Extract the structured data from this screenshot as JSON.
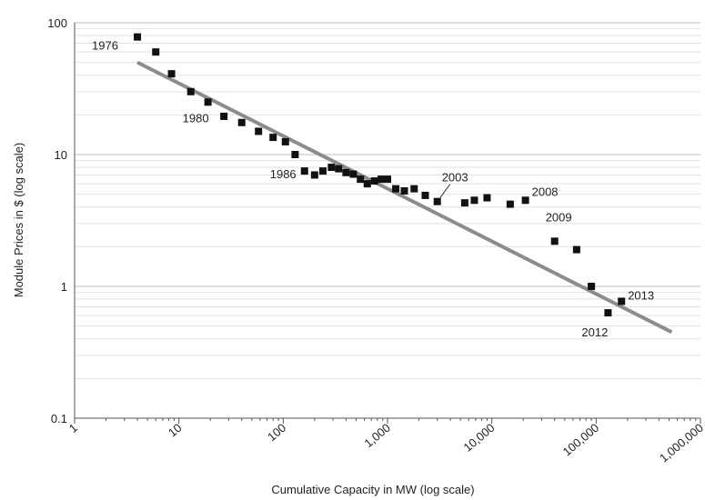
{
  "chart_data": {
    "type": "scatter",
    "xlabel": "Cumulative Capacity in MW (log scale)",
    "ylabel": "Module Prices in $ (log scale)",
    "xscale": "log",
    "yscale": "log",
    "xlim": [
      1,
      1000000
    ],
    "ylim": [
      0.1,
      100
    ],
    "x_ticks": [
      {
        "value": 1,
        "label": "1"
      },
      {
        "value": 10,
        "label": "10"
      },
      {
        "value": 100,
        "label": "100"
      },
      {
        "value": 1000,
        "label": "1,000"
      },
      {
        "value": 10000,
        "label": "10,000"
      },
      {
        "value": 100000,
        "label": "100,000"
      },
      {
        "value": 1000000,
        "label": "1,000,000"
      }
    ],
    "y_ticks": [
      {
        "value": 0.1,
        "label": "0.1"
      },
      {
        "value": 1,
        "label": "1"
      },
      {
        "value": 10,
        "label": "10"
      },
      {
        "value": 100,
        "label": "100"
      }
    ],
    "grid": "horizontal major and minor",
    "colors": {
      "points": "#111111",
      "trendline": "#8c8c8c",
      "grid_major": "#bdbdbd",
      "grid_minor": "#e2e2e2",
      "axis": "#555555"
    },
    "points": [
      {
        "x": 4,
        "y": 78
      },
      {
        "x": 6,
        "y": 60
      },
      {
        "x": 8.5,
        "y": 41
      },
      {
        "x": 13,
        "y": 30
      },
      {
        "x": 19,
        "y": 25
      },
      {
        "x": 27,
        "y": 19.5
      },
      {
        "x": 40,
        "y": 17.5
      },
      {
        "x": 58,
        "y": 15
      },
      {
        "x": 80,
        "y": 13.5
      },
      {
        "x": 105,
        "y": 12.5
      },
      {
        "x": 130,
        "y": 10
      },
      {
        "x": 160,
        "y": 7.5
      },
      {
        "x": 200,
        "y": 7
      },
      {
        "x": 240,
        "y": 7.5
      },
      {
        "x": 290,
        "y": 8
      },
      {
        "x": 340,
        "y": 7.8
      },
      {
        "x": 400,
        "y": 7.3
      },
      {
        "x": 470,
        "y": 7.1
      },
      {
        "x": 550,
        "y": 6.5
      },
      {
        "x": 640,
        "y": 6
      },
      {
        "x": 750,
        "y": 6.3
      },
      {
        "x": 870,
        "y": 6.5
      },
      {
        "x": 1000,
        "y": 6.5
      },
      {
        "x": 1200,
        "y": 5.5
      },
      {
        "x": 1450,
        "y": 5.3
      },
      {
        "x": 1800,
        "y": 5.5
      },
      {
        "x": 2300,
        "y": 4.9
      },
      {
        "x": 3000,
        "y": 4.4
      },
      {
        "x": 5500,
        "y": 4.3
      },
      {
        "x": 6800,
        "y": 4.5
      },
      {
        "x": 9000,
        "y": 4.7
      },
      {
        "x": 15000,
        "y": 4.2
      },
      {
        "x": 21000,
        "y": 4.5
      },
      {
        "x": 40000,
        "y": 2.2
      },
      {
        "x": 65000,
        "y": 1.9
      },
      {
        "x": 90000,
        "y": 1
      },
      {
        "x": 130000,
        "y": 0.63
      },
      {
        "x": 175000,
        "y": 0.77
      }
    ],
    "trendline": {
      "x": [
        4,
        530000
      ],
      "y": [
        50,
        0.45
      ]
    },
    "annotations": [
      {
        "text": "1976",
        "x": 4,
        "y": 78
      },
      {
        "text": "1980",
        "x": 19,
        "y": 25
      },
      {
        "text": "1986",
        "x": 160,
        "y": 7.5
      },
      {
        "text": "2003",
        "x": 3000,
        "y": 4.4
      },
      {
        "text": "2008",
        "x": 21000,
        "y": 4.5
      },
      {
        "text": "2009",
        "x": 40000,
        "y": 2.2
      },
      {
        "text": "2012",
        "x": 130000,
        "y": 0.63
      },
      {
        "text": "2013",
        "x": 175000,
        "y": 0.77
      }
    ]
  }
}
